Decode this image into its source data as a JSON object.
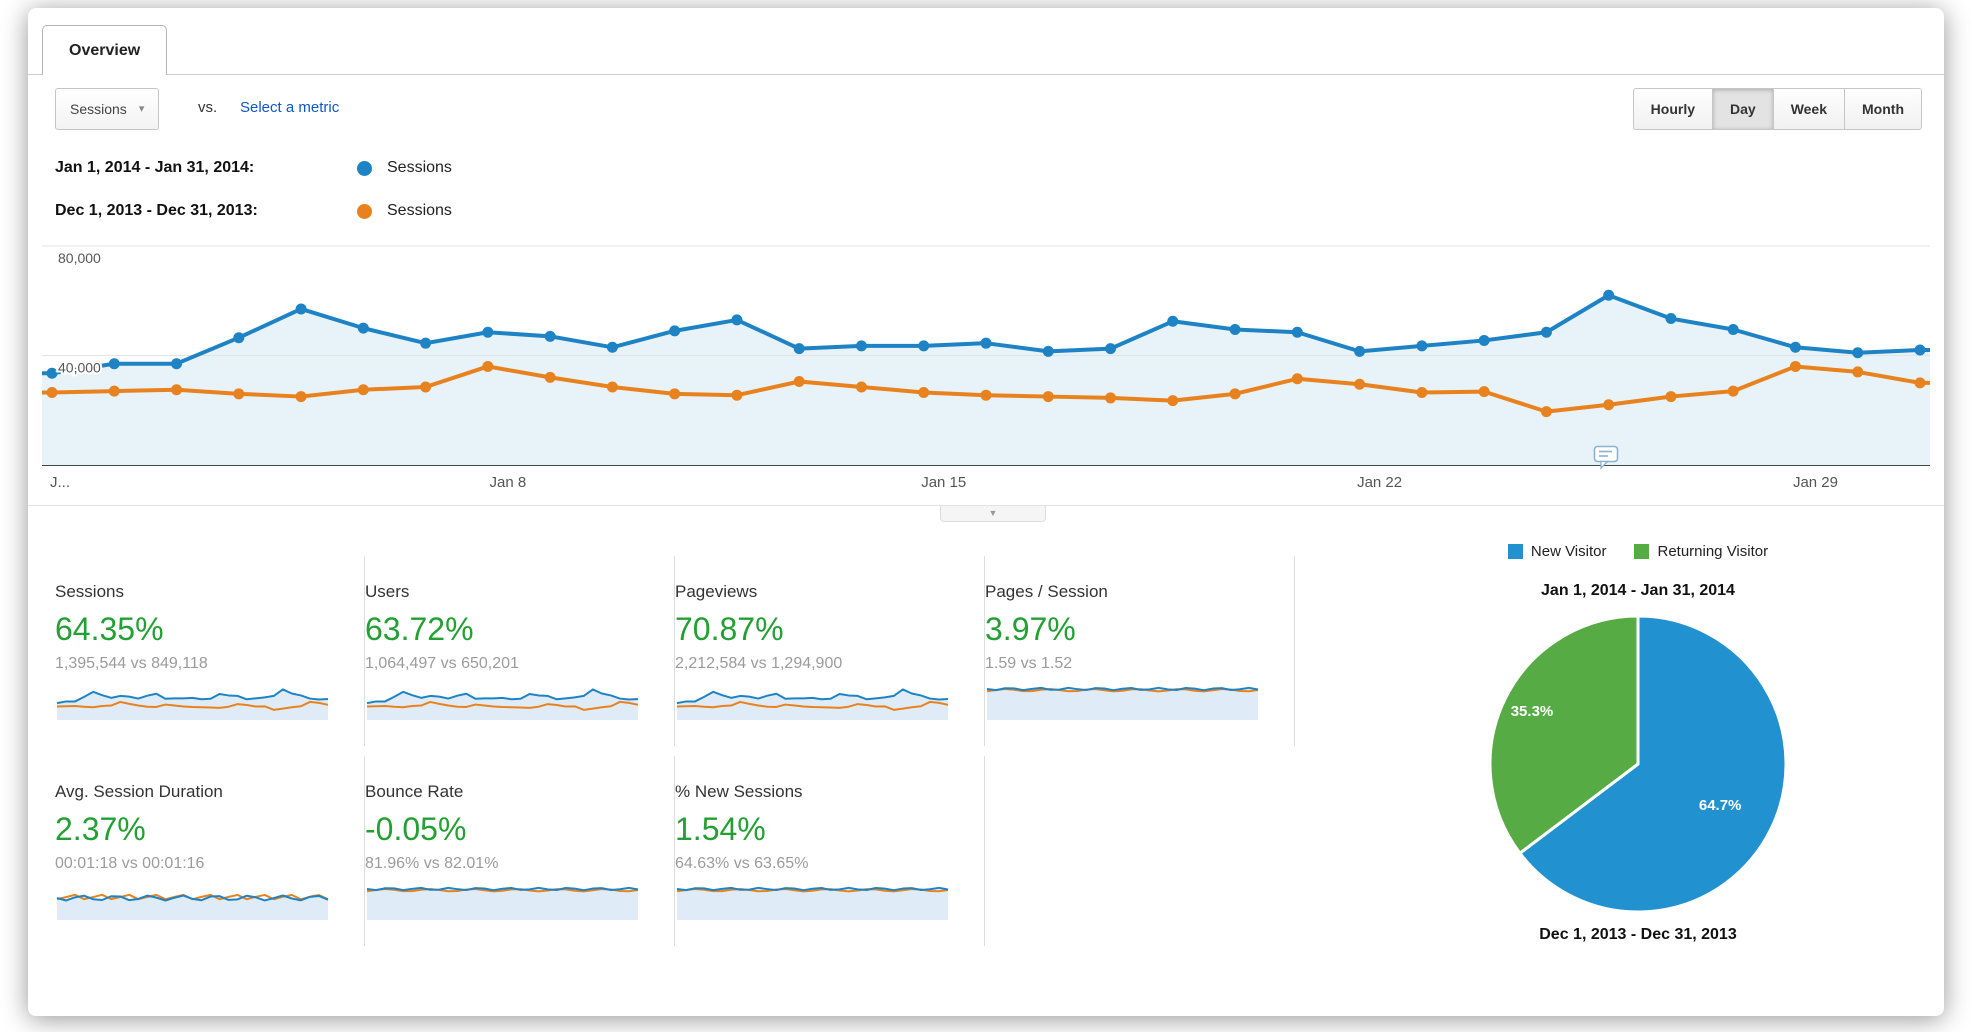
{
  "tab_label": "Overview",
  "controls": {
    "metric_dropdown": "Sessions",
    "vs_label": "vs.",
    "select_metric_link": "Select a metric",
    "granularity": [
      "Hourly",
      "Day",
      "Week",
      "Month"
    ],
    "granularity_selected": "Day"
  },
  "legend": [
    {
      "date_range": "Jan 1, 2014 - Jan 31, 2014:",
      "series": "Sessions",
      "color": "#1e83c4"
    },
    {
      "date_range": "Dec 1, 2013 - Dec 31, 2013:",
      "series": "Sessions",
      "color": "#e8821e"
    }
  ],
  "chart_data": [
    {
      "type": "line",
      "title": "Sessions by day — Jan 1, 2014 - Jan 31, 2014 vs Dec 1, 2013 - Dec 31, 2013",
      "x_tick_labels": [
        "J...",
        "Jan 8",
        "Jan 15",
        "Jan 22",
        "Jan 29"
      ],
      "x_tick_indices": [
        0,
        7,
        14,
        21,
        28
      ],
      "ylim": [
        0,
        80000
      ],
      "y_ticks": [
        {
          "value": 40000,
          "label": "40,000"
        },
        {
          "value": 80000,
          "label": "80,000"
        }
      ],
      "grid": "horizontal",
      "legend_position": "above",
      "series": [
        {
          "name": "Sessions — Jan 1, 2014 - Jan 31, 2014",
          "color": "#1e83c4",
          "values": [
            33500,
            37000,
            37000,
            46500,
            57000,
            50000,
            44500,
            48500,
            47000,
            43000,
            49000,
            53000,
            42500,
            43500,
            43500,
            44500,
            41500,
            42500,
            52500,
            49500,
            48500,
            41500,
            43500,
            45500,
            48500,
            62000,
            53500,
            49500,
            43000,
            41000,
            42000
          ]
        },
        {
          "name": "Sessions — Dec 1, 2013 - Dec 31, 2013",
          "color": "#e8821e",
          "values": [
            26500,
            27000,
            27500,
            26000,
            25000,
            27500,
            28500,
            36000,
            32000,
            28500,
            26000,
            25500,
            30500,
            28500,
            26500,
            25500,
            25000,
            24500,
            23500,
            26000,
            31500,
            29500,
            26500,
            26800,
            19500,
            22000,
            25000,
            27000,
            36000,
            34000,
            30000
          ]
        }
      ]
    },
    {
      "type": "pie",
      "title": "Jan 1, 2014 - Jan 31, 2014",
      "subtitle": "Dec 1, 2013 - Dec 31, 2013",
      "legend": [
        {
          "label": "New Visitor",
          "color": "#2191cf"
        },
        {
          "label": "Returning Visitor",
          "color": "#57ab45"
        }
      ],
      "slices": [
        {
          "label": "New Visitor",
          "value": 64.7,
          "display": "64.7%",
          "color": "#2191cf"
        },
        {
          "label": "Returning Visitor",
          "value": 35.3,
          "display": "35.3%",
          "color": "#57ab45"
        }
      ]
    }
  ],
  "cards": [
    {
      "title": "Sessions",
      "change": "64.35%",
      "comparison": "1,395,544 vs 849,118",
      "change_color": "#23a033",
      "sparkline": "varied"
    },
    {
      "title": "Users",
      "change": "63.72%",
      "comparison": "1,064,497 vs 650,201",
      "change_color": "#23a033",
      "sparkline": "varied"
    },
    {
      "title": "Pageviews",
      "change": "70.87%",
      "comparison": "2,212,584 vs 1,294,900",
      "change_color": "#23a033",
      "sparkline": "varied"
    },
    {
      "title": "Pages / Session",
      "change": "3.97%",
      "comparison": "1.59 vs 1.52",
      "change_color": "#23a033",
      "sparkline": "flat-high"
    },
    {
      "title": "Avg. Session Duration",
      "change": "2.37%",
      "comparison": "00:01:18 vs 00:01:16",
      "change_color": "#23a033",
      "sparkline": "flat-mid"
    },
    {
      "title": "Bounce Rate",
      "change": "-0.05%",
      "comparison": "81.96% vs 82.01%",
      "change_color": "#23a033",
      "sparkline": "flat-high"
    },
    {
      "title": "% New Sessions",
      "change": "1.54%",
      "comparison": "64.63% vs 63.65%",
      "change_color": "#23a033",
      "sparkline": "flat-high"
    }
  ],
  "colors": {
    "positive_green": "#23a033",
    "series_blue": "#1e83c4",
    "series_orange": "#e8821e",
    "area_fill": "#e8f2f9",
    "link_blue": "#1155cc"
  }
}
